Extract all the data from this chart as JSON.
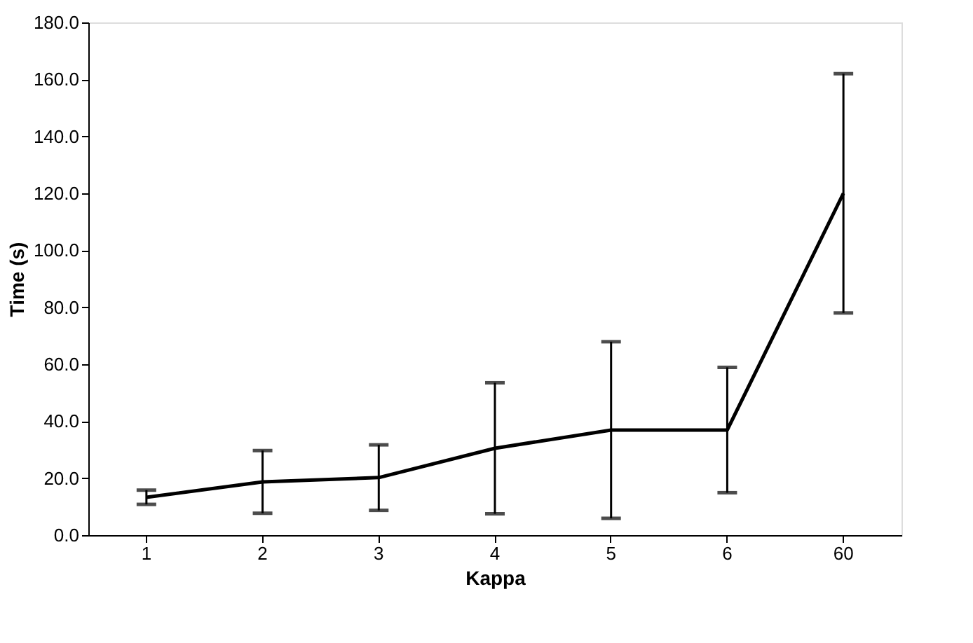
{
  "chart_data": {
    "type": "line",
    "xlabel": "Kappa",
    "ylabel": "Time (s)",
    "categories": [
      "1",
      "2",
      "3",
      "4",
      "5",
      "6",
      "60"
    ],
    "series": [
      {
        "color": "#000000",
        "values": [
          13.3,
          18.7,
          20.2,
          30.5,
          36.9,
          36.9,
          120.0
        ],
        "errors": [
          2.5,
          11,
          11.5,
          23,
          31,
          22,
          42
        ]
      }
    ],
    "ylim": [
      0,
      180
    ],
    "yticks": [
      {
        "value": 0,
        "label": "0.0"
      },
      {
        "value": 20,
        "label": "20.0"
      },
      {
        "value": 40,
        "label": "40.0"
      },
      {
        "value": 60,
        "label": "60.0"
      },
      {
        "value": 80,
        "label": "80.0"
      },
      {
        "value": 100,
        "label": "100.0"
      },
      {
        "value": 120,
        "label": "120.0"
      },
      {
        "value": 140,
        "label": "140.0"
      },
      {
        "value": 160,
        "label": "160.0"
      },
      {
        "value": 180,
        "label": "180.0"
      }
    ],
    "grid": false,
    "marker": "none",
    "line_style": "solid"
  }
}
